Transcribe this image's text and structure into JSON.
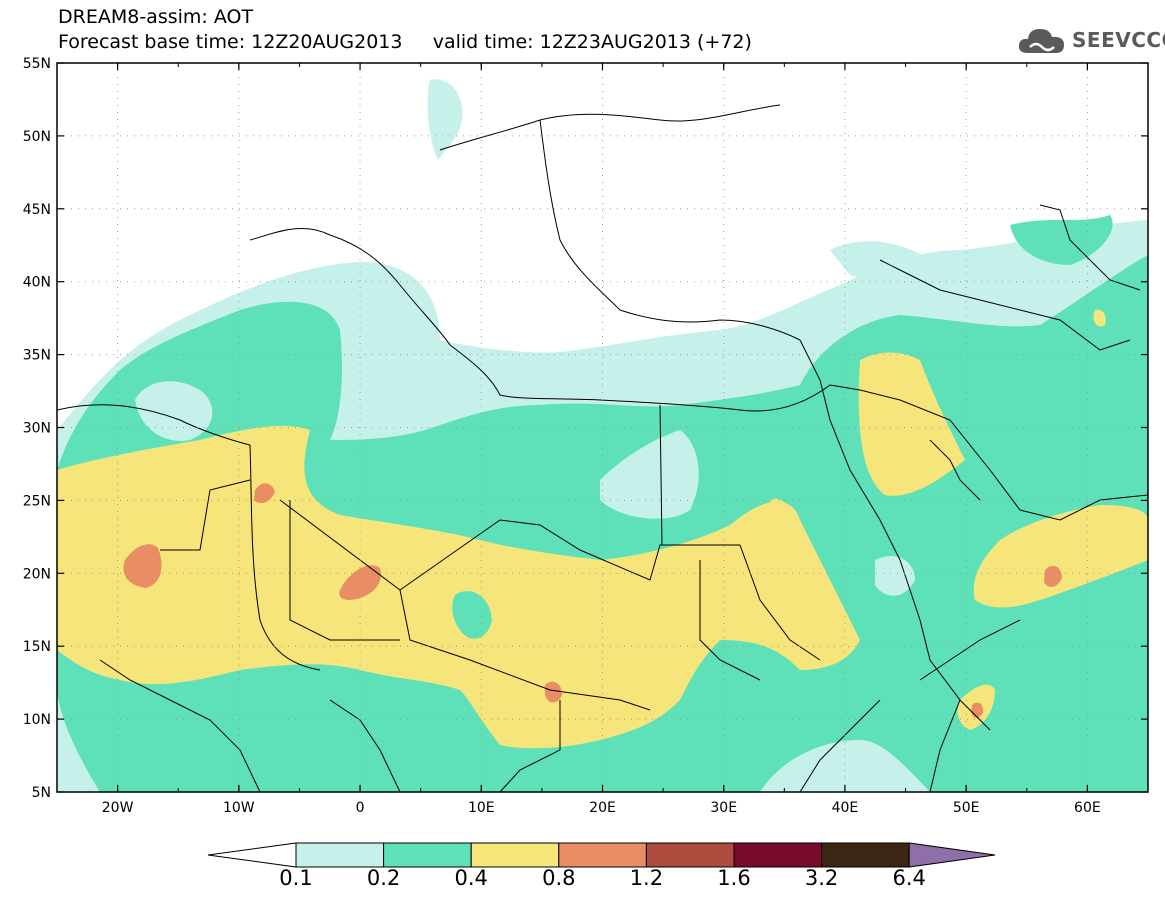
{
  "title": {
    "line1": "DREAM8-assim: AOT",
    "base_label": "Forecast base time: 12Z20AUG2013",
    "valid_label": "valid time: 12Z23AUG2013 (+72)"
  },
  "logo": {
    "text": "SEEVCCC",
    "icon": "cloud-logo-icon",
    "color": "#5a5a5a"
  },
  "map": {
    "lon_range": [
      -25,
      65
    ],
    "lat_range": [
      5,
      55
    ],
    "lat_labels": [
      "55N",
      "50N",
      "45N",
      "40N",
      "35N",
      "30N",
      "25N",
      "20N",
      "15N",
      "10N",
      "5N"
    ],
    "lon_labels": [
      "20W",
      "10W",
      "0",
      "10E",
      "20E",
      "30E",
      "40E",
      "50E",
      "60E"
    ]
  },
  "colorbar": {
    "levels": [
      "0.1",
      "0.2",
      "0.4",
      "0.8",
      "1.2",
      "1.6",
      "3.2",
      "6.4"
    ],
    "colors": [
      "#ffffff",
      "#c6f1ea",
      "#5ee0b8",
      "#f5e57a",
      "#e98e64",
      "#ad4c3e",
      "#7a0a2c",
      "#3d2514",
      "#8e6fa8"
    ]
  }
}
